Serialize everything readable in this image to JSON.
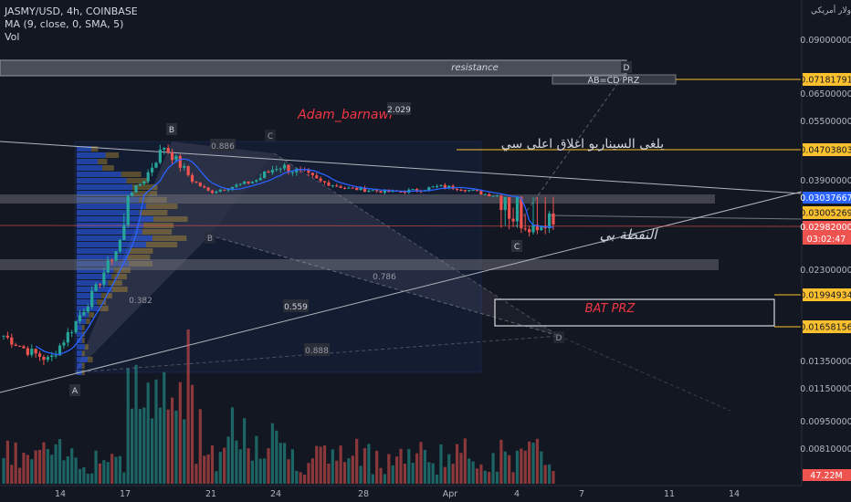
{
  "legend": {
    "symbol_line": "JASMY/USD, 4h, COINBASE",
    "ma_line": "MA (9, close, 0, SMA, 5)",
    "vol_line": "Vol"
  },
  "colors": {
    "background": "#131722",
    "up": "#26a69a",
    "down": "#ef5350",
    "ma": "#2962ff",
    "highlight": "#fbc02d",
    "current_price": "#2962ff",
    "arabic_text": "#d1d4dc",
    "red_text": "#f23645"
  },
  "price_axis": {
    "currency_label": "دولار أمريكي",
    "ticks": [
      "0.09000000",
      "0.06500000",
      "0.05500000",
      "0.03900000",
      "0.02300000",
      "0.01350000",
      "0.01150000",
      "0.00950000",
      "0.00810000"
    ],
    "tick_values": [
      0.09,
      0.065,
      0.055,
      0.039,
      0.023,
      0.0135,
      0.0115,
      0.0095,
      0.0081
    ],
    "highlighted_labels": [
      {
        "text": "0.07181791",
        "value": 0.07181791
      },
      {
        "text": "0.04703803",
        "value": 0.04703803
      },
      {
        "text": "0.03005269",
        "value": 0.03005269
      },
      {
        "text": "0.01994934",
        "value": 0.01994934
      },
      {
        "text": "0.01658156",
        "value": 0.01658156
      }
    ],
    "current_price": {
      "price": "0.03037667",
      "value": 0.03037667
    },
    "last_price": {
      "price": "0.02982000",
      "countdown": "03:02:47",
      "value": 0.02982
    },
    "volume_label": "47.22M"
  },
  "time_axis": {
    "ticks": [
      "14",
      "17",
      "21",
      "24",
      "28",
      "Apr",
      "4",
      "7",
      "11",
      "14"
    ]
  },
  "annotations": {
    "resistance": "resistance",
    "ab_cd": "AB=CD  PRZ",
    "author": "Adam_barnawi",
    "ratio_top": "2.029",
    "scenario_cancel": "يلغى السيناريو اغلاق اعلى سي",
    "point_c": "النقطة بي",
    "bat_prz": "BAT  PRZ",
    "ratio_886": "0.886",
    "ratio_559": "0.559",
    "ratio_888": "0.888",
    "ratio_786": "0.786",
    "ratio_382": "0.382",
    "pt_a": "A",
    "pt_b": "B",
    "pt_c": "C",
    "pt_d": "D",
    "pt_b2": "B",
    "pt_c2": "C",
    "pt_d2": "D"
  },
  "chart_data": {
    "type": "candlestick",
    "symbol": "JASMY/USD",
    "timeframe": "4h",
    "exchange": "COINBASE",
    "x_ticks": [
      "14",
      "17",
      "21",
      "24",
      "28",
      "Apr",
      "4",
      "7",
      "11",
      "14"
    ],
    "price_samples": [
      {
        "t": "13",
        "close": 0.0158
      },
      {
        "t": "14",
        "close": 0.0145
      },
      {
        "t": "14.5",
        "close": 0.0136
      },
      {
        "t": "15",
        "close": 0.0165
      },
      {
        "t": "16",
        "close": 0.0205
      },
      {
        "t": "17",
        "close": 0.0265
      },
      {
        "t": "18",
        "close": 0.038
      },
      {
        "t": "19",
        "close": 0.048
      },
      {
        "t": "20",
        "close": 0.041
      },
      {
        "t": "21",
        "close": 0.033
      },
      {
        "t": "22",
        "close": 0.036
      },
      {
        "t": "23",
        "close": 0.039
      },
      {
        "t": "24",
        "close": 0.043
      },
      {
        "t": "25",
        "close": 0.041
      },
      {
        "t": "26",
        "close": 0.038
      },
      {
        "t": "27",
        "close": 0.035
      },
      {
        "t": "28",
        "close": 0.034
      },
      {
        "t": "29",
        "close": 0.033
      },
      {
        "t": "30",
        "close": 0.034
      },
      {
        "t": "31",
        "close": 0.036
      },
      {
        "t": "Apr1",
        "close": 0.035
      },
      {
        "t": "Apr2",
        "close": 0.032
      },
      {
        "t": "Apr3",
        "close": 0.0305
      },
      {
        "t": "Apr4",
        "close": 0.0295
      },
      {
        "t": "Apr5",
        "close": 0.0302
      }
    ],
    "ma_period": 9,
    "last_price": 0.02982
  }
}
